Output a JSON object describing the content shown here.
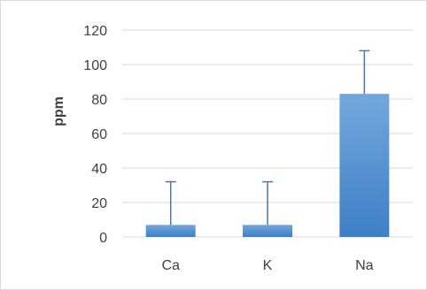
{
  "chart_data": {
    "type": "bar",
    "title": "",
    "xlabel": "",
    "ylabel": "ppm",
    "categories": [
      "Ca",
      "K",
      "Na"
    ],
    "values": [
      7,
      7,
      83
    ],
    "error_bars": {
      "upper": [
        25,
        25,
        25
      ],
      "lower": [
        0,
        0,
        0
      ]
    },
    "ylim": [
      0,
      120
    ],
    "yticks": [
      0,
      20,
      40,
      60,
      80,
      100,
      120
    ],
    "grid": true,
    "legend": "none",
    "colors": {
      "bar_top": "#74a7dd",
      "bar_bottom": "#3d7fc6",
      "error_bar": "#4a78a8",
      "grid": "#d9d9d9",
      "text": "#404040"
    }
  }
}
